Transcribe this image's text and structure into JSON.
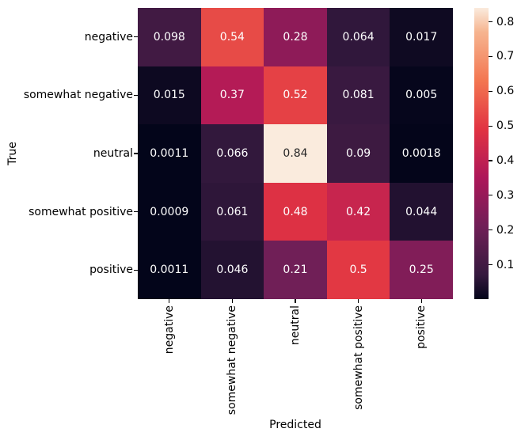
{
  "chart_data": {
    "type": "heatmap",
    "title": "",
    "xlabel": "Predicted",
    "ylabel": "True",
    "x_categories": [
      "negative",
      "somewhat negative",
      "neutral",
      "somewhat positive",
      "positive"
    ],
    "y_categories": [
      "negative",
      "somewhat negative",
      "neutral",
      "somewhat positive",
      "positive"
    ],
    "matrix": [
      [
        0.098,
        0.54,
        0.28,
        0.064,
        0.017
      ],
      [
        0.015,
        0.37,
        0.52,
        0.081,
        0.005
      ],
      [
        0.0011,
        0.066,
        0.84,
        0.09,
        0.0018
      ],
      [
        0.0009,
        0.061,
        0.48,
        0.42,
        0.044
      ],
      [
        0.0011,
        0.046,
        0.21,
        0.5,
        0.25
      ]
    ],
    "cell_labels": [
      [
        "0.098",
        "0.54",
        "0.28",
        "0.064",
        "0.017"
      ],
      [
        "0.015",
        "0.37",
        "0.52",
        "0.081",
        "0.005"
      ],
      [
        "0.0011",
        "0.066",
        "0.84",
        "0.09",
        "0.0018"
      ],
      [
        "0.0009",
        "0.061",
        "0.48",
        "0.42",
        "0.044"
      ],
      [
        "0.0011",
        "0.046",
        "0.21",
        "0.5",
        "0.25"
      ]
    ],
    "vmin": 0.0009,
    "vmax": 0.84,
    "colorbar_ticks": [
      "0.1",
      "0.2",
      "0.3",
      "0.4",
      "0.5",
      "0.6",
      "0.7",
      "0.8"
    ],
    "colormap": {
      "name": "rocket",
      "stops": [
        [
          0.0,
          "#03051A"
        ],
        [
          0.083,
          "#35193E"
        ],
        [
          0.25,
          "#701F57"
        ],
        [
          0.417,
          "#AD1759"
        ],
        [
          0.583,
          "#E13342"
        ],
        [
          0.75,
          "#F37651"
        ],
        [
          0.917,
          "#F6B48F"
        ],
        [
          1.0,
          "#FAEBDD"
        ]
      ]
    },
    "annotation_color_light_bg": "#262626",
    "annotation_color_dark_bg": "#ffffff",
    "tick_color": "#000000",
    "background": "#ffffff",
    "grid": false,
    "legend_position": "right-colorbar"
  }
}
